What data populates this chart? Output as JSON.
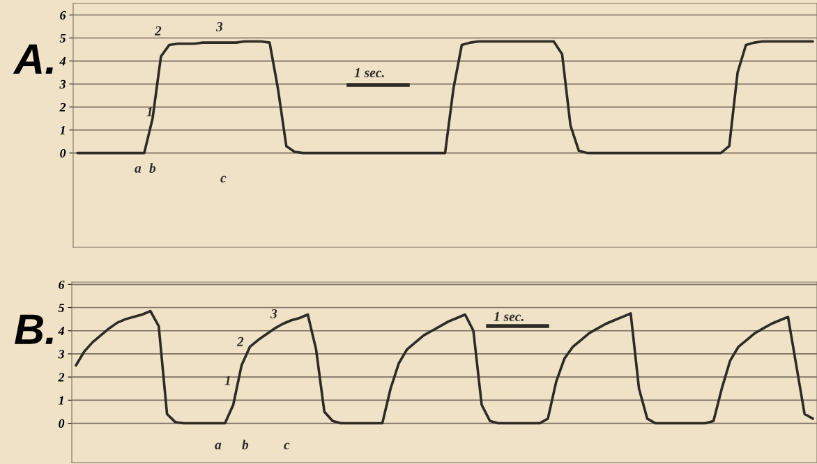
{
  "chart_data": [
    {
      "type": "line",
      "title": "A.",
      "categories": [
        null,
        null,
        null,
        null,
        null,
        null,
        null,
        null,
        null,
        null,
        null,
        null,
        null,
        null,
        null,
        null,
        null,
        null,
        null,
        null,
        null,
        null,
        null,
        null,
        null,
        null,
        null,
        null,
        null,
        null,
        null,
        null,
        null,
        null,
        null,
        null,
        null,
        null,
        null,
        null,
        null,
        null,
        null,
        null,
        null,
        null,
        null,
        null,
        null,
        null,
        null,
        null,
        null,
        null,
        null,
        null,
        null,
        null,
        null,
        null,
        null,
        null,
        null,
        null,
        null,
        null,
        null,
        null,
        null,
        null,
        null,
        null,
        null,
        null,
        null,
        null,
        null,
        null,
        null,
        null,
        null,
        null,
        null,
        null,
        null,
        null,
        null,
        null,
        null
      ],
      "series": [
        {
          "color": "#2e2a26",
          "values": [
            0,
            0,
            0,
            0,
            0,
            0,
            0,
            0,
            0,
            1.5,
            4.2,
            4.7,
            4.75,
            4.75,
            4.75,
            4.8,
            4.8,
            4.8,
            4.8,
            4.8,
            4.85,
            4.85,
            4.85,
            4.8,
            2.8,
            0.3,
            0.05,
            0,
            0,
            0,
            0,
            0,
            0,
            0,
            0,
            0,
            0,
            0,
            0,
            0,
            0,
            0,
            0,
            0,
            0,
            2.8,
            4.7,
            4.8,
            4.85,
            4.85,
            4.85,
            4.85,
            4.85,
            4.85,
            4.85,
            4.85,
            4.85,
            4.85,
            4.3,
            1.2,
            0.1,
            0,
            0,
            0,
            0,
            0,
            0,
            0,
            0,
            0,
            0,
            0,
            0,
            0,
            0,
            0,
            0,
            0,
            0.3,
            3.5,
            4.7,
            4.8,
            4.85,
            4.85,
            4.85,
            4.85,
            4.85,
            4.85,
            4.85
          ]
        }
      ],
      "ylim": [
        -4.1,
        6.5
      ],
      "yticks": [
        0,
        1,
        2,
        3,
        4,
        5,
        6
      ],
      "tick_labels": "y",
      "grid": "y",
      "annotations": [
        "1",
        "2",
        "3",
        "a",
        "b",
        "c",
        "1 sec."
      ]
    },
    {
      "type": "line",
      "title": "B.",
      "categories": [
        null,
        null,
        null,
        null,
        null,
        null,
        null,
        null,
        null,
        null,
        null,
        null,
        null,
        null,
        null,
        null,
        null,
        null,
        null,
        null,
        null,
        null,
        null,
        null,
        null,
        null,
        null,
        null,
        null,
        null,
        null,
        null,
        null,
        null,
        null,
        null,
        null,
        null,
        null,
        null,
        null,
        null,
        null,
        null,
        null,
        null,
        null,
        null,
        null,
        null,
        null,
        null,
        null,
        null,
        null,
        null,
        null,
        null,
        null,
        null,
        null,
        null,
        null,
        null,
        null,
        null,
        null,
        null,
        null,
        null,
        null,
        null,
        null,
        null,
        null,
        null,
        null,
        null,
        null,
        null,
        null,
        null,
        null,
        null,
        null,
        null,
        null,
        null,
        null,
        null
      ],
      "series": [
        {
          "color": "#2e2a26",
          "values": [
            2.5,
            3.1,
            3.5,
            3.8,
            4.1,
            4.35,
            4.5,
            4.6,
            4.7,
            4.85,
            4.2,
            0.4,
            0.05,
            0,
            0,
            0,
            0,
            0,
            0,
            0.8,
            2.5,
            3.3,
            3.6,
            3.85,
            4.1,
            4.3,
            4.45,
            4.55,
            4.7,
            3.2,
            0.5,
            0.1,
            0,
            0,
            0,
            0,
            0,
            0,
            1.5,
            2.6,
            3.2,
            3.5,
            3.8,
            4.0,
            4.2,
            4.4,
            4.55,
            4.7,
            4.0,
            0.8,
            0.1,
            0,
            0,
            0,
            0,
            0,
            0,
            0.2,
            1.8,
            2.8,
            3.3,
            3.6,
            3.9,
            4.1,
            4.3,
            4.45,
            4.6,
            4.75,
            1.5,
            0.2,
            0,
            0,
            0,
            0,
            0,
            0,
            0,
            0.1,
            1.5,
            2.7,
            3.3,
            3.6,
            3.9,
            4.1,
            4.3,
            4.45,
            4.6,
            2.5,
            0.4,
            0.2
          ]
        }
      ],
      "ylim": [
        -1.7,
        6.1
      ],
      "yticks": [
        0,
        1,
        2,
        3,
        4,
        5,
        6
      ],
      "tick_labels": "y",
      "grid": "y",
      "annotations": [
        "1",
        "2",
        "3",
        "a",
        "b",
        "c",
        "1 sec."
      ]
    }
  ]
}
